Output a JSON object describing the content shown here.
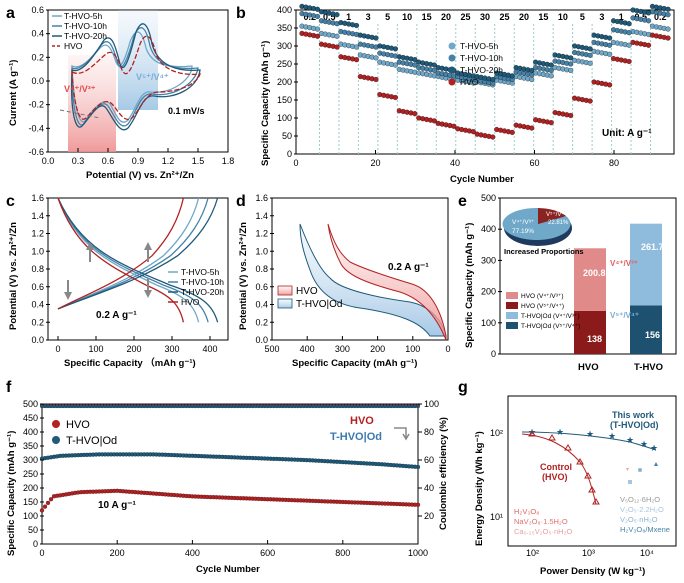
{
  "colors": {
    "hvo": "#b22222",
    "t5": "#6fa8c8",
    "t10": "#4682a8",
    "t20": "#1f5a7a",
    "red_band": "#f4b0b0",
    "blue_band": "#b6d3ea",
    "dark": "#1e3a5f"
  },
  "chart_data": [
    {
      "panel": "a",
      "type": "line",
      "xlabel": "Potential (V) vs. Zn²⁺/Zn",
      "ylabel": "Current (A g⁻¹)",
      "xlim": [
        0.0,
        1.8
      ],
      "ylim": [
        -0.6,
        0.6
      ],
      "xticks": [
        "0.0",
        "0.3",
        "0.6",
        "0.9",
        "1.2",
        "1.5",
        "1.8"
      ],
      "yticks": [
        "-0.6",
        "-0.4",
        "-0.2",
        "0.0",
        "0.2",
        "0.4",
        "0.6"
      ],
      "legend": [
        "T-HVO-5h",
        "T-HVO-10h",
        "T-HVO-20h",
        "HVO"
      ],
      "annotations": {
        "red": "V⁴⁺/V³⁺",
        "blue": "V⁵⁺/V⁴⁺",
        "rate": "0.1 mV/s"
      }
    },
    {
      "panel": "b",
      "type": "scatter",
      "xlabel": "Cycle Number",
      "ylabel": "Specific Capacity (mAh g⁻¹)",
      "xlim": [
        0,
        95
      ],
      "ylim": [
        0,
        400
      ],
      "xticks": [
        "0",
        "20",
        "40",
        "60",
        "80"
      ],
      "yticks": [
        "0",
        "50",
        "100",
        "150",
        "200",
        "250",
        "300",
        "350",
        "400"
      ],
      "rates": [
        "0.2",
        "0.5",
        "1",
        "3",
        "5",
        "10",
        "15",
        "20",
        "25",
        "30",
        "25",
        "20",
        "15",
        "10",
        "5",
        "3",
        "1",
        "0.5",
        "0.2"
      ],
      "unit": "Unit: A g⁻¹",
      "series": [
        {
          "name": "T-HVO-5h",
          "values": [
            355,
            335,
            305,
            275,
            255,
            235,
            225,
            215,
            205,
            200,
            205,
            215,
            225,
            240,
            260,
            285,
            310,
            340,
            355
          ]
        },
        {
          "name": "T-HVO-10h",
          "values": [
            390,
            370,
            340,
            305,
            280,
            255,
            240,
            225,
            215,
            205,
            215,
            228,
            240,
            258,
            282,
            310,
            345,
            378,
            395
          ]
        },
        {
          "name": "T-HVO-20h",
          "values": [
            410,
            395,
            365,
            330,
            300,
            270,
            255,
            240,
            225,
            215,
            225,
            240,
            255,
            275,
            300,
            330,
            370,
            400,
            410
          ]
        },
        {
          "name": "HVO",
          "values": [
            335,
            305,
            270,
            215,
            165,
            120,
            100,
            85,
            70,
            55,
            68,
            80,
            95,
            115,
            155,
            200,
            265,
            310,
            330
          ]
        }
      ]
    },
    {
      "panel": "c",
      "type": "line",
      "xlabel": "Specific Capacity （mAh g⁻¹)",
      "ylabel": "Potential (V) vs. Zn²⁺/Zn",
      "xlim": [
        0,
        450
      ],
      "ylim": [
        0.0,
        1.6
      ],
      "xticks": [
        "0",
        "100",
        "200",
        "300",
        "400"
      ],
      "yticks": [
        "0.0",
        "0.2",
        "0.4",
        "0.6",
        "0.8",
        "1.0",
        "1.2",
        "1.4",
        "1.6"
      ],
      "legend": [
        "T-HVO-5h",
        "T-HVO-10h",
        "T-HVO-20h",
        "HVO"
      ],
      "rate": "0.2 A g⁻¹",
      "max_capacity": {
        "T-HVO-5h": 370,
        "T-HVO-10h": 395,
        "T-HVO-20h": 420,
        "HVO": 330
      }
    },
    {
      "panel": "d",
      "type": "area",
      "xlabel": "Specific Capacity (mAh g⁻¹)",
      "ylabel": "Potential (V) vs. Zn²⁺/Zn",
      "xlim": [
        500,
        0
      ],
      "ylim": [
        0.0,
        1.6
      ],
      "xticks": [
        "500",
        "400",
        "300",
        "200",
        "100",
        "0"
      ],
      "yticks": [
        "0.0",
        "0.2",
        "0.4",
        "0.6",
        "0.8",
        "1.0",
        "1.2",
        "1.4",
        "1.6"
      ],
      "legend": [
        "HVO",
        "T-HVO|Od"
      ],
      "rate": "0.2 A g⁻¹"
    },
    {
      "panel": "e",
      "type": "bar",
      "ylabel": "Specific Capacity (mAh g⁻¹)",
      "ylim": [
        0,
        500
      ],
      "yticks": [
        "0",
        "100",
        "200",
        "300",
        "400",
        "500"
      ],
      "categories": [
        "HVO",
        "T-HVO"
      ],
      "series": [
        {
          "name": "V⁵⁺/V⁴⁺",
          "values": [
            138,
            156
          ]
        },
        {
          "name": "V⁴⁺/V³⁺",
          "values": [
            200.8,
            261.7
          ]
        }
      ],
      "labels": {
        "hvo_low": "138",
        "hvo_high": "200.8",
        "t_low": "156",
        "t_high": "261.7",
        "red_text": "V⁴⁺/V³⁺",
        "blue_text": "V⁵⁺/V⁴⁺"
      },
      "legend": [
        "HVO (V⁴⁺/V³⁺)",
        "HVO (V⁵⁺/V⁴⁺)",
        "T-HVO|Od (V⁴⁺/V³⁺)",
        "T-HVO|Od (V⁵⁺/V⁴⁺)"
      ],
      "pie": {
        "title": "Increased Proportions",
        "blue": "77.19%",
        "red": "22.81%",
        "blue_label": "V⁴⁺/V³⁺",
        "red_label": "V⁵⁺/V⁴⁺"
      }
    },
    {
      "panel": "f",
      "type": "scatter",
      "xlabel": "Cycle Number",
      "ylabel": "Specific Capacity (mAh g⁻¹)",
      "y2label": "Coulombic efficiency (%)",
      "xlim": [
        0,
        1000
      ],
      "ylim": [
        0,
        500
      ],
      "y2lim": [
        0,
        100
      ],
      "xticks": [
        "0",
        "200",
        "400",
        "600",
        "800",
        "1000"
      ],
      "yticks": [
        "0",
        "50",
        "100",
        "150",
        "200",
        "250",
        "300",
        "350",
        "400",
        "450",
        "500"
      ],
      "y2ticks": [
        "20",
        "40",
        "60",
        "80",
        "100"
      ],
      "legend": [
        "HVO",
        "T-HVO|Od"
      ],
      "rate": "10 A g⁻¹",
      "ce_labels": [
        "HVO",
        "T-HVO|Od"
      ],
      "series": [
        {
          "name": "HVO",
          "x": [
            0,
            30,
            100,
            200,
            400,
            600,
            800,
            1000
          ],
          "values": [
            120,
            170,
            185,
            190,
            170,
            160,
            150,
            140
          ]
        },
        {
          "name": "T-HVO|Od",
          "x": [
            0,
            50,
            150,
            300,
            500,
            700,
            900,
            1000
          ],
          "values": [
            305,
            315,
            320,
            320,
            310,
            300,
            285,
            275
          ]
        }
      ]
    },
    {
      "panel": "g",
      "type": "scatter",
      "xlabel": "Power Density (W kg⁻¹)",
      "ylabel": "Energy Density (Wh kg⁻¹)",
      "xticks": [
        "10²",
        "10³",
        "10⁴"
      ],
      "yticks": [
        "10¹",
        "10²"
      ],
      "labels": {
        "this_work": "This work",
        "this_work2": "(T-HVO|Od)",
        "control": "Control",
        "control2": "(HVO)",
        "ref1": "H₂V₃O₈",
        "ref2": "NaV₃O₈·1.5H₂O",
        "ref3": "Ca₀.₂₅V₂O₅·nH₂O",
        "ref4": "V₅O₁₂·6H₂O",
        "ref5": "V₂O₅·2.2H₂O",
        "ref6": "V₂O₅·nH₂O",
        "ref7": "H₂V₃O₈/Mxene"
      }
    }
  ]
}
